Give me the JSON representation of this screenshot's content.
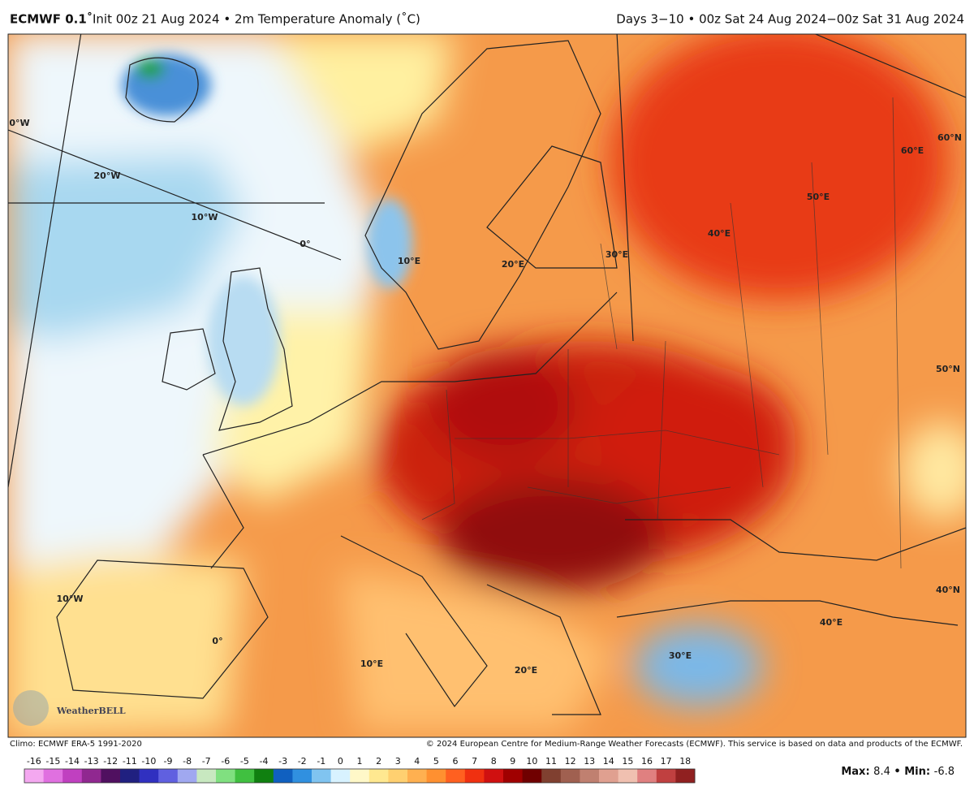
{
  "header": {
    "model": "ECMWF 0.1˚",
    "init": "Init 00z 21 Aug 2024 • 2m Temperature Anomaly (˚C)",
    "period": "Days 3−10 • 00z Sat 24 Aug 2024−00z Sat 31 Aug 2024"
  },
  "map": {
    "grid_labels": [
      "0°W",
      "20°W",
      "10°W",
      "0°",
      "10°E",
      "20°E",
      "30°E",
      "40°E",
      "50°E",
      "60°E",
      "60°N",
      "50°N",
      "40°N",
      "10°W",
      "0°",
      "10°E",
      "20°E",
      "30°E",
      "40°E"
    ],
    "logo": "WeatherBELL"
  },
  "footer": {
    "climo": "Climo: ECMWF ERA-5 1991-2020",
    "copyright": "© 2024 European Centre for Medium-Range Weather Forecasts (ECMWF). This service is based on data and products of the ECMWF."
  },
  "colorbar": {
    "ticks": [
      -16,
      -15,
      -14,
      -13,
      -12,
      -11,
      -10,
      -9,
      -8,
      -7,
      -6,
      -5,
      -4,
      -3,
      -2,
      -1,
      0,
      1,
      2,
      3,
      4,
      5,
      6,
      7,
      8,
      9,
      10,
      11,
      12,
      13,
      14,
      15,
      16,
      17,
      18
    ],
    "colors": [
      "#f4a8f0",
      "#e070e0",
      "#c040c0",
      "#902890",
      "#501060",
      "#202080",
      "#3030c0",
      "#6060e0",
      "#a0a8f0",
      "#c8e8c0",
      "#80e080",
      "#40c040",
      "#108010",
      "#1060c0",
      "#3090e0",
      "#80c4f0",
      "#d8f2ff",
      "#fff8c8",
      "#ffe890",
      "#ffd070",
      "#ffb050",
      "#ff9030",
      "#ff6020",
      "#f03010",
      "#d01010",
      "#a00000",
      "#700000",
      "#804030",
      "#a06050",
      "#c08070",
      "#e0a090",
      "#f0c0b0",
      "#e08080",
      "#c04040",
      "#902020"
    ]
  },
  "stats": {
    "max_label": "Max:",
    "max": 8.4,
    "separator": "•",
    "min_label": "Min:",
    "min": -6.8
  }
}
